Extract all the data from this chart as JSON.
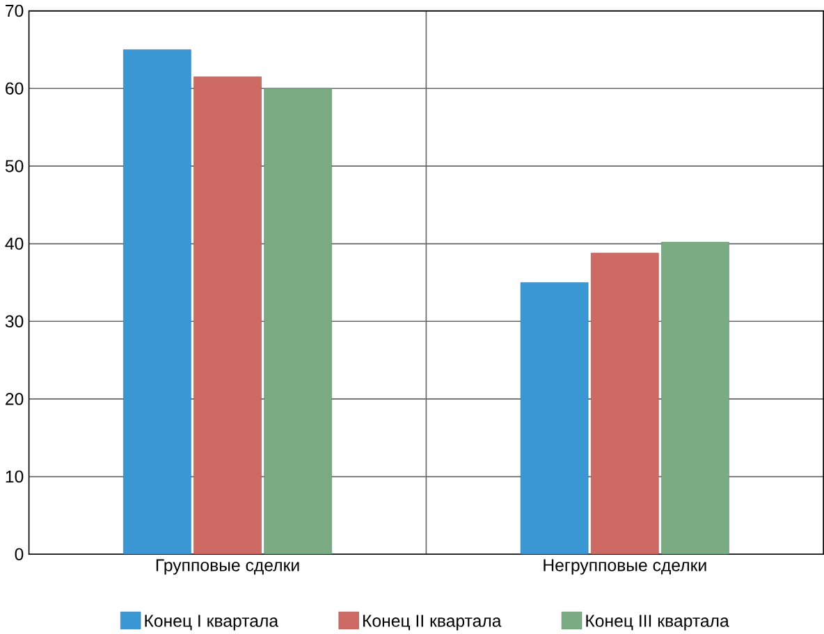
{
  "chart_data": {
    "type": "bar",
    "categories": [
      "Групповые сделки",
      "Негрупповые сделки"
    ],
    "series": [
      {
        "name": "Конец I квартала",
        "color": "#3a97d4",
        "values": [
          65,
          35
        ]
      },
      {
        "name": "Конец II квартала",
        "color": "#cd6a63",
        "values": [
          61.5,
          38.8
        ]
      },
      {
        "name": "Конец III квартала",
        "color": "#7aab83",
        "values": [
          60,
          40.2
        ]
      }
    ],
    "ylim": [
      0,
      70
    ],
    "yticks": [
      0,
      10,
      20,
      30,
      40,
      50,
      60,
      70
    ],
    "grid": true,
    "legend": "bottom"
  }
}
